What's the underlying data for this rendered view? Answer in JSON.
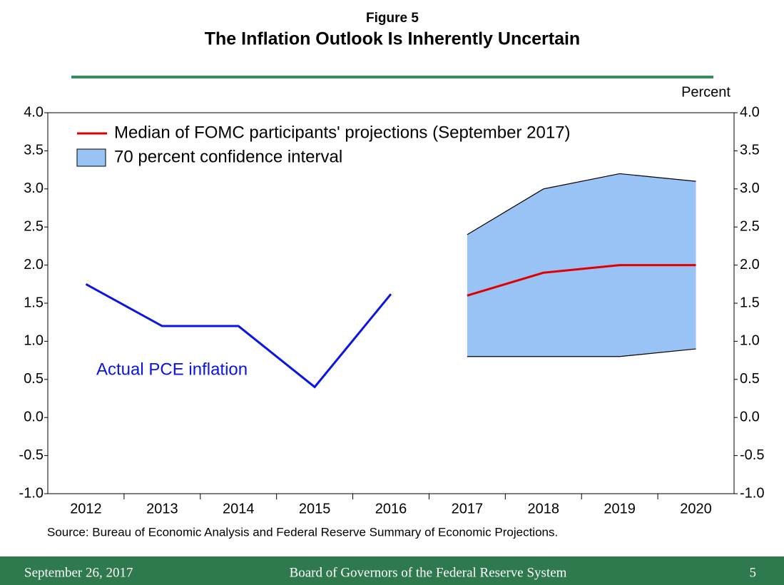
{
  "chart_data": {
    "type": "line",
    "title": "Figure 5",
    "subtitle": "The Inflation Outlook Is Inherently Uncertain",
    "y_unit": "Percent",
    "source": "Source: Bureau of Economic Analysis and Federal Reserve Summary of Economic Projections.",
    "categories": [
      "2012",
      "2013",
      "2014",
      "2015",
      "2016",
      "2017",
      "2018",
      "2019",
      "2020"
    ],
    "series": [
      {
        "name": "Actual PCE inflation",
        "color": "#0a14e6",
        "legend": false,
        "values": [
          1.75,
          1.2,
          1.2,
          0.4,
          1.62,
          null,
          null,
          null,
          null
        ]
      },
      {
        "name": "Median of FOMC participants' projections (September 2017)",
        "color": "#e00000",
        "legend": true,
        "values": [
          null,
          null,
          null,
          null,
          null,
          1.6,
          1.9,
          2.0,
          2.0
        ]
      }
    ],
    "band": {
      "name": "70 percent confidence interval",
      "color": "#99c2f5",
      "lower": [
        null,
        null,
        null,
        null,
        null,
        0.8,
        0.8,
        0.8,
        0.9
      ],
      "upper": [
        null,
        null,
        null,
        null,
        null,
        2.4,
        3.0,
        3.2,
        3.1
      ]
    },
    "ylim": [
      -1,
      4
    ],
    "yticks": [
      {
        "value": -1,
        "label": "-1.0"
      },
      -0.5,
      {
        "value": 0,
        "label": "0.0"
      },
      0.5,
      {
        "value": 1,
        "label": "1.0"
      },
      1.5,
      {
        "value": 2,
        "label": "2.0"
      },
      2.5,
      {
        "value": 3,
        "label": "3.0"
      },
      3.5,
      {
        "value": 4,
        "label": "4.0"
      }
    ],
    "right_axis_labels": true
  },
  "footer": {
    "date": "September 26, 2017",
    "organization": "Board of Governors of the Federal Reserve System",
    "page": "5"
  }
}
